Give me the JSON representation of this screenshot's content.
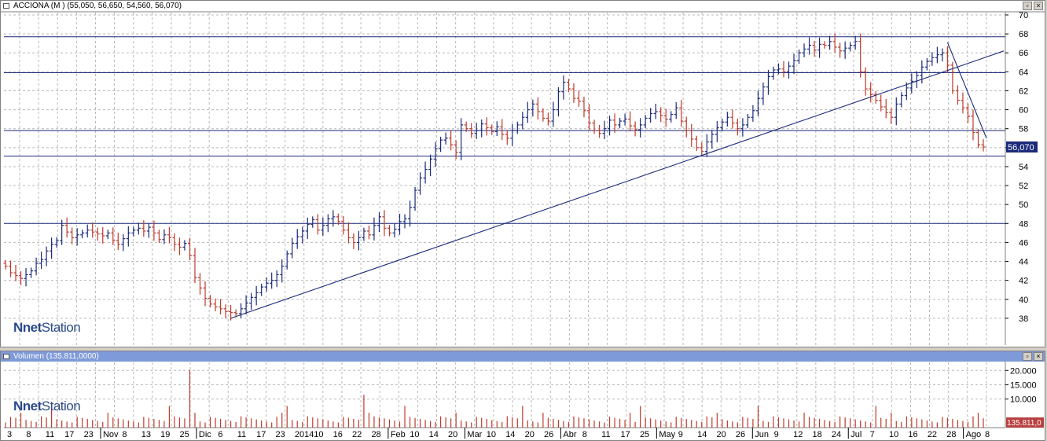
{
  "price_panel": {
    "title": "ACCIONA (M ) (55,050, 56,650, 54,560, 56,070)",
    "last_value_badge": "56,070",
    "logo_prefix": "net",
    "logo_suffix": "Station",
    "buttons": [
      "▫",
      "×"
    ]
  },
  "volume_panel": {
    "title": "Volumen (135.811,0000)",
    "last_value_badge": "135.811,0",
    "logo_prefix": "net",
    "logo_suffix": "Station",
    "buttons": [
      "▫",
      "×"
    ]
  },
  "colors": {
    "up": "#1b2a7a",
    "down": "#c0392b",
    "line": "#1b2a7a",
    "grid": "#b8b8b8",
    "badge_bg": "#1b2a7a",
    "volume_badge_bg": "#b84040"
  },
  "chart_data": [
    {
      "type": "ohlc",
      "series_name": "ACCIONA",
      "ylim": [
        36,
        70
      ],
      "yticks": [
        38,
        40,
        42,
        44,
        46,
        48,
        50,
        52,
        54,
        56,
        58,
        60,
        62,
        64,
        66,
        68,
        70
      ],
      "grid": true,
      "horizontal_lines": [
        67.7,
        63.9,
        57.8,
        55.1,
        48.0
      ],
      "trendlines": [
        {
          "from": [
            0,
            38.0
          ],
          "to": [
            1,
            66.2
          ]
        },
        {
          "from": [
            0,
            67.1
          ],
          "to": [
            1,
            57.0
          ]
        }
      ],
      "closes": [
        43.5,
        42.8,
        42.5,
        42.2,
        42.6,
        43.0,
        43.8,
        44.2,
        45.1,
        45.8,
        46.2,
        47.8,
        47.1,
        46.5,
        46.8,
        47.0,
        47.3,
        47.1,
        46.9,
        46.7,
        47.0,
        46.2,
        45.8,
        46.4,
        47.0,
        47.3,
        47.5,
        47.2,
        47.6,
        47.0,
        46.3,
        46.8,
        46.5,
        45.8,
        45.5,
        45.9,
        44.6,
        42.3,
        41.2,
        40.1,
        39.5,
        39.2,
        39.0,
        38.7,
        38.6,
        38.5,
        39.0,
        39.6,
        40.2,
        40.7,
        41.3,
        41.7,
        42.0,
        42.6,
        43.5,
        44.8,
        45.9,
        46.6,
        47.2,
        47.9,
        48.4,
        47.3,
        47.8,
        48.5,
        48.7,
        48.2,
        47.3,
        46.5,
        46.0,
        46.5,
        47.2,
        46.8,
        47.8,
        48.7,
        47.5,
        47.0,
        47.4,
        48.2,
        48.5,
        49.7,
        51.5,
        52.8,
        53.7,
        54.8,
        55.9,
        56.8,
        57.0,
        56.3,
        55.5,
        58.4,
        58.0,
        57.5,
        57.8,
        58.5,
        58.1,
        57.7,
        58.2,
        57.4,
        57.0,
        57.8,
        58.4,
        59.2,
        60.0,
        60.6,
        59.8,
        59.1,
        58.8,
        60.0,
        61.9,
        62.9,
        62.2,
        61.2,
        60.9,
        59.9,
        58.6,
        57.8,
        57.5,
        58.0,
        58.9,
        58.4,
        58.8,
        59.0,
        58.3,
        57.9,
        58.4,
        59.1,
        59.6,
        59.8,
        59.4,
        59.0,
        59.5,
        60.2,
        58.8,
        57.8,
        56.9,
        56.0,
        55.6,
        56.6,
        57.4,
        58.1,
        58.7,
        59.2,
        58.6,
        58.0,
        58.4,
        59.2,
        59.9,
        61.2,
        62.4,
        63.5,
        64.2,
        64.3,
        64.0,
        64.6,
        65.2,
        66.0,
        66.4,
        66.8,
        66.3,
        66.9,
        66.8,
        67.2,
        66.6,
        66.2,
        66.5,
        66.8,
        67.2,
        64.0,
        62.2,
        61.6,
        61.0,
        60.3,
        59.7,
        59.2,
        60.6,
        61.5,
        62.3,
        63.0,
        63.6,
        64.5,
        65.1,
        65.5,
        65.8,
        66.0,
        64.7,
        62.0,
        61.0,
        60.2,
        59.3,
        57.6,
        56.3,
        56.07
      ],
      "volume": {
        "ylim": [
          0,
          22000
        ],
        "yticks": [
          10000,
          15000,
          20000
        ],
        "ytick_labels": [
          "10.000",
          "15.000",
          "20.000"
        ]
      },
      "x_labels": [
        "3",
        "8",
        "11",
        "17",
        "23",
        "Nov",
        "8",
        "13",
        "19",
        "25",
        "Dic",
        "6",
        "11",
        "17",
        "23",
        "2014",
        "10",
        "16",
        "22",
        "28",
        "Feb",
        "10",
        "14",
        "20",
        "Mar",
        "10",
        "14",
        "20",
        "26",
        "Abr",
        "8",
        "11",
        "17",
        "25",
        "May",
        "9",
        "14",
        "20",
        "26",
        "Jun",
        "9",
        "12",
        "18",
        "24",
        "Jul",
        "7",
        "10",
        "16",
        "22",
        "28",
        "Ago",
        "8"
      ]
    }
  ]
}
